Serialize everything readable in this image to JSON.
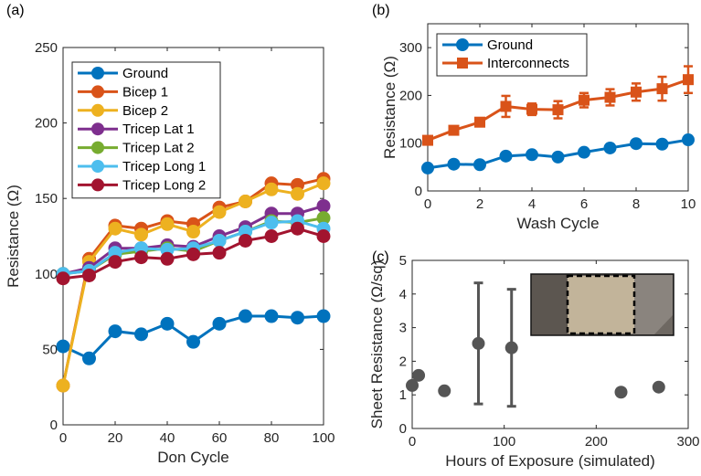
{
  "chart_data": [
    {
      "panel_label": "(a)",
      "type": "line",
      "xlabel": "Don Cycle",
      "ylabel": "Resistance (Ω)",
      "xlim": [
        0,
        100
      ],
      "ylim": [
        0,
        250
      ],
      "xticks": [
        0,
        20,
        40,
        60,
        80,
        100
      ],
      "yticks": [
        0,
        50,
        100,
        150,
        200,
        250
      ],
      "grid": false,
      "legend_placement": "top-left",
      "x": [
        0,
        10,
        20,
        30,
        40,
        50,
        60,
        70,
        80,
        90,
        100
      ],
      "series": [
        {
          "name": "Ground",
          "color": "#0072BD",
          "values": [
            52,
            44,
            62,
            60,
            67,
            55,
            67,
            72,
            72,
            71,
            72
          ]
        },
        {
          "name": "Bicep 1",
          "color": "#D95319",
          "values": [
            26,
            110,
            132,
            130,
            135,
            133,
            144,
            148,
            160,
            159,
            163
          ]
        },
        {
          "name": "Bicep 2",
          "color": "#EDB120",
          "values": [
            26,
            108,
            130,
            126,
            133,
            128,
            141,
            148,
            156,
            153,
            160
          ]
        },
        {
          "name": "Tricep Lat 1",
          "color": "#7E2F8E",
          "values": [
            100,
            104,
            117,
            117,
            119,
            118,
            125,
            131,
            140,
            140,
            145
          ]
        },
        {
          "name": "Tricep Lat 2",
          "color": "#77AC30",
          "values": [
            100,
            102,
            113,
            115,
            117,
            115,
            122,
            128,
            135,
            134,
            137
          ]
        },
        {
          "name": "Tricep Long 1",
          "color": "#4DBEEE",
          "values": [
            100,
            102,
            114,
            117,
            116,
            117,
            122,
            128,
            134,
            135,
            130
          ]
        },
        {
          "name": "Tricep Long 2",
          "color": "#A2142F",
          "values": [
            97,
            99,
            108,
            111,
            110,
            113,
            114,
            122,
            125,
            130,
            125
          ]
        }
      ]
    },
    {
      "panel_label": "(b)",
      "type": "line",
      "xlabel": "Wash Cycle",
      "ylabel": "Resistance (Ω)",
      "xlim": [
        0,
        10
      ],
      "ylim": [
        0,
        350
      ],
      "xticks": [
        0,
        2,
        4,
        6,
        8,
        10
      ],
      "yticks": [
        0,
        100,
        200,
        300
      ],
      "grid": false,
      "legend_placement": "top-left",
      "x": [
        0,
        1,
        2,
        3,
        4,
        5,
        6,
        7,
        8,
        9,
        10
      ],
      "series": [
        {
          "name": "Ground",
          "color": "#0072BD",
          "marker": "circle",
          "values": [
            48,
            56,
            55,
            73,
            76,
            71,
            81,
            90,
            99,
            98,
            107
          ]
        },
        {
          "name": "Interconnects",
          "color": "#D95319",
          "marker": "square",
          "values": [
            106,
            127,
            144,
            177,
            171,
            170,
            190,
            196,
            207,
            214,
            233
          ],
          "errors": [
            3,
            7,
            6,
            22,
            12,
            18,
            15,
            17,
            18,
            25,
            28
          ]
        }
      ]
    },
    {
      "panel_label": "(c)",
      "type": "scatter",
      "xlabel": "Hours of Exposure (simulated)",
      "ylabel": "Sheet Resistance (Ω/sq)",
      "xlim": [
        0,
        300
      ],
      "ylim": [
        0,
        5
      ],
      "xticks": [
        0,
        100,
        200,
        300
      ],
      "yticks": [
        0,
        1,
        2,
        3,
        4,
        5
      ],
      "grid": false,
      "color": "#555555",
      "inset": "photo of fabric sample with dashed rectangle",
      "x": [
        0,
        7,
        35,
        72,
        108,
        227,
        268
      ],
      "values": [
        1.28,
        1.58,
        1.12,
        2.53,
        2.4,
        1.08,
        1.23
      ],
      "errors": [
        0.05,
        0.05,
        0.05,
        1.8,
        1.74,
        0.1,
        0.05
      ]
    }
  ]
}
